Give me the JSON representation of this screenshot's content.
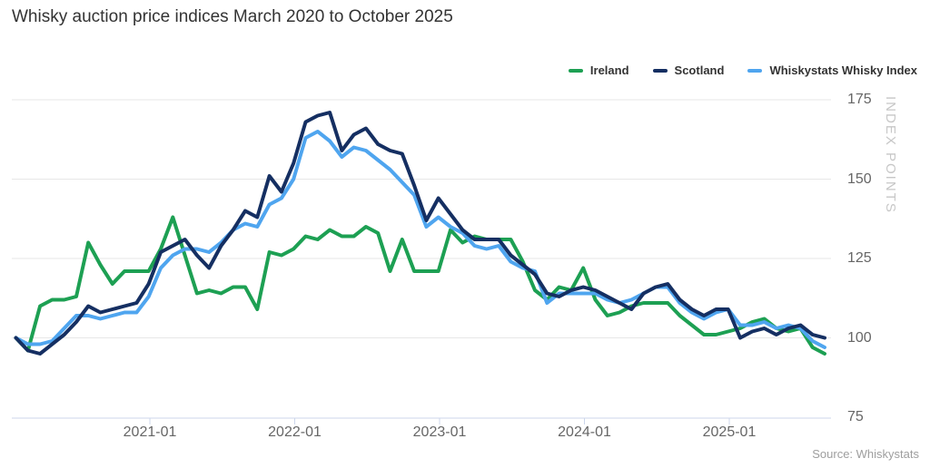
{
  "title": "Whisky auction price indices March 2020 to October 2025",
  "source": "Source: Whiskystats",
  "y_axis": {
    "title": "INDEX POINTS",
    "ticks": [
      175,
      150,
      125,
      100,
      75
    ]
  },
  "x_axis": {
    "ticks": [
      "2021-01",
      "2022-01",
      "2023-01",
      "2024-01",
      "2025-01"
    ]
  },
  "colors": {
    "ireland": "#1da053",
    "scotland": "#152f62",
    "whiskystats": "#4fa5ef",
    "grid": "#e7e7e7",
    "axis_line": "#ccd6eb",
    "label_gray": "#666666"
  },
  "chart_data": {
    "type": "line",
    "title": "Whisky auction price indices March 2020 to October 2025",
    "ylabel": "INDEX POINTS",
    "ylim": [
      75,
      180
    ],
    "grid": true,
    "legend_position": "top-right",
    "x": [
      "2020-03",
      "2020-04",
      "2020-05",
      "2020-06",
      "2020-07",
      "2020-08",
      "2020-09",
      "2020-10",
      "2020-11",
      "2020-12",
      "2021-01",
      "2021-02",
      "2021-03",
      "2021-04",
      "2021-05",
      "2021-06",
      "2021-07",
      "2021-08",
      "2021-09",
      "2021-10",
      "2021-11",
      "2021-12",
      "2022-01",
      "2022-02",
      "2022-03",
      "2022-04",
      "2022-05",
      "2022-06",
      "2022-07",
      "2022-08",
      "2022-09",
      "2022-10",
      "2022-11",
      "2022-12",
      "2023-01",
      "2023-02",
      "2023-03",
      "2023-04",
      "2023-05",
      "2023-06",
      "2023-07",
      "2023-08",
      "2023-09",
      "2023-10",
      "2023-11",
      "2023-12",
      "2024-01",
      "2024-02",
      "2024-03",
      "2024-04",
      "2024-05",
      "2024-06",
      "2024-07",
      "2024-08",
      "2024-09",
      "2024-10",
      "2024-11",
      "2024-12",
      "2025-01",
      "2025-02",
      "2025-03",
      "2025-04",
      "2025-05",
      "2025-06",
      "2025-07",
      "2025-08",
      "2025-09",
      "2025-10"
    ],
    "series": [
      {
        "name": "Ireland",
        "color": "#1da053",
        "values": [
          100,
          96,
          110,
          112,
          112,
          113,
          130,
          123,
          117,
          121,
          121,
          121,
          128,
          138,
          126,
          114,
          115,
          114,
          116,
          116,
          109,
          127,
          126,
          128,
          132,
          131,
          134,
          132,
          132,
          135,
          133,
          121,
          131,
          121,
          121,
          121,
          134,
          130,
          132,
          131,
          131,
          131,
          124,
          115,
          112,
          116,
          115,
          122,
          112,
          107,
          108,
          110,
          111,
          111,
          111,
          107,
          104,
          101,
          101,
          102,
          103,
          105,
          106,
          103,
          102,
          103,
          97,
          95
        ]
      },
      {
        "name": "Scotland",
        "color": "#152f62",
        "values": [
          100,
          96,
          95,
          98,
          101,
          105,
          110,
          108,
          109,
          110,
          111,
          117,
          127,
          129,
          131,
          126,
          122,
          129,
          134,
          140,
          138,
          151,
          146,
          155,
          168,
          170,
          171,
          159,
          164,
          166,
          161,
          159,
          158,
          148,
          137,
          144,
          139,
          134,
          131,
          131,
          131,
          126,
          123,
          120,
          114,
          113,
          115,
          116,
          115,
          113,
          111,
          109,
          114,
          116,
          117,
          112,
          109,
          107,
          109,
          109,
          100,
          102,
          103,
          101,
          103,
          104,
          101,
          100
        ]
      },
      {
        "name": "Whiskystats Whisky Index",
        "color": "#4fa5ef",
        "values": [
          100,
          98,
          98,
          99,
          103,
          107,
          107,
          106,
          107,
          108,
          108,
          113,
          122,
          126,
          128,
          128,
          127,
          130,
          134,
          136,
          135,
          142,
          144,
          150,
          163,
          165,
          162,
          157,
          160,
          159,
          156,
          153,
          149,
          145,
          135,
          138,
          135,
          133,
          129,
          128,
          129,
          124,
          122,
          121,
          111,
          114,
          114,
          114,
          114,
          112,
          111,
          112,
          114,
          116,
          116,
          111,
          108,
          106,
          108,
          109,
          104,
          104,
          105,
          103,
          104,
          103,
          99,
          97
        ]
      }
    ]
  }
}
